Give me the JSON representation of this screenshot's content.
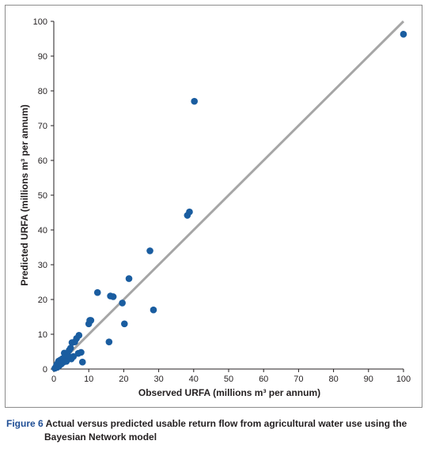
{
  "chart_data": {
    "type": "scatter",
    "xlabel": "Observed URFA (millions m³ per annum)",
    "ylabel": "Predicted URFA (millions m³ per annum)",
    "xlim": [
      0,
      100
    ],
    "ylim": [
      0,
      100
    ],
    "x_ticks": [
      "0",
      "10",
      "20",
      "30",
      "40",
      "50",
      "60",
      "70",
      "80",
      "90",
      "100"
    ],
    "y_ticks": [
      "0",
      "10",
      "20",
      "30",
      "40",
      "50",
      "60",
      "70",
      "80",
      "90",
      "100"
    ],
    "grid": false,
    "legend": "none",
    "reference_line": {
      "from": [
        0,
        0
      ],
      "to": [
        100,
        100
      ],
      "color": "#a6a6a6"
    },
    "marker_color": "#1a5da0",
    "points": [
      {
        "x": 0.3,
        "y": 0.2
      },
      {
        "x": 0.6,
        "y": 0.6
      },
      {
        "x": 0.8,
        "y": 1.2
      },
      {
        "x": 1.0,
        "y": 0.5
      },
      {
        "x": 1.2,
        "y": 1.8
      },
      {
        "x": 1.4,
        "y": 2.3
      },
      {
        "x": 1.6,
        "y": 1.0
      },
      {
        "x": 1.9,
        "y": 2.6
      },
      {
        "x": 2.2,
        "y": 1.5
      },
      {
        "x": 2.5,
        "y": 3.0
      },
      {
        "x": 2.8,
        "y": 2.0
      },
      {
        "x": 3.0,
        "y": 4.6
      },
      {
        "x": 3.3,
        "y": 3.4
      },
      {
        "x": 3.6,
        "y": 2.2
      },
      {
        "x": 4.0,
        "y": 4.0
      },
      {
        "x": 4.4,
        "y": 5.4
      },
      {
        "x": 4.8,
        "y": 6.0
      },
      {
        "x": 5.0,
        "y": 2.9
      },
      {
        "x": 5.2,
        "y": 7.6
      },
      {
        "x": 5.6,
        "y": 3.6
      },
      {
        "x": 6.0,
        "y": 7.8
      },
      {
        "x": 6.5,
        "y": 8.8
      },
      {
        "x": 7.0,
        "y": 4.5
      },
      {
        "x": 7.2,
        "y": 9.7
      },
      {
        "x": 7.8,
        "y": 4.8
      },
      {
        "x": 8.2,
        "y": 2.0
      },
      {
        "x": 10.0,
        "y": 13.0
      },
      {
        "x": 10.3,
        "y": 14.0
      },
      {
        "x": 10.6,
        "y": 14.0
      },
      {
        "x": 12.5,
        "y": 22.0
      },
      {
        "x": 15.8,
        "y": 7.8
      },
      {
        "x": 16.2,
        "y": 21.0
      },
      {
        "x": 17.0,
        "y": 20.8
      },
      {
        "x": 19.6,
        "y": 19.0
      },
      {
        "x": 20.2,
        "y": 13.0
      },
      {
        "x": 21.5,
        "y": 26.0
      },
      {
        "x": 27.5,
        "y": 34.0
      },
      {
        "x": 28.5,
        "y": 17.0
      },
      {
        "x": 38.2,
        "y": 44.2
      },
      {
        "x": 38.8,
        "y": 45.2
      },
      {
        "x": 40.2,
        "y": 77.0
      },
      {
        "x": 100.0,
        "y": 96.3
      }
    ]
  },
  "caption": {
    "figure_label": "Figure 6",
    "line1": "Actual versus predicted usable return flow from agricultural water use using the",
    "line2": "Bayesian Network model"
  }
}
